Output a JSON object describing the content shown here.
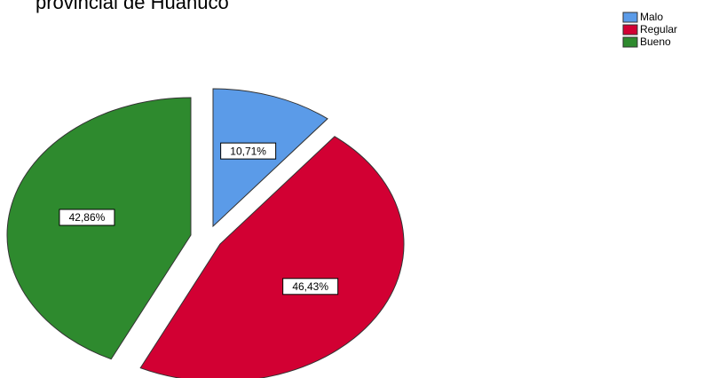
{
  "chart_data": {
    "type": "pie",
    "title": "provincial de Huanuco",
    "categories": [
      "Malo",
      "Regular",
      "Bueno"
    ],
    "values": [
      10.71,
      46.43,
      42.86
    ],
    "value_labels": [
      "10,71%",
      "46,43%",
      "42,86%"
    ],
    "colors": [
      "#5b9be8",
      "#d20033",
      "#2e8a2e"
    ],
    "legend": "top-right"
  }
}
